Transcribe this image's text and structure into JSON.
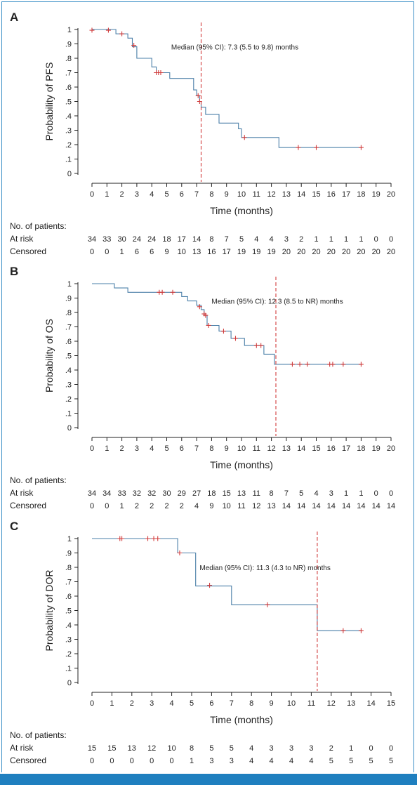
{
  "colors": {
    "curve": "#4a7fa8",
    "censor": "#d13c3c",
    "median": "#d13c3c",
    "axis": "#222222",
    "frame": "#3b8fc6",
    "bar": "#1f7fbf"
  },
  "patients_label": "No. of patients:",
  "at_risk_label": "At risk",
  "censored_label": "Censored",
  "chart_data": [
    {
      "type": "line",
      "panel_label": "A",
      "ylabel": "Probability of PFS",
      "xlabel": "Time (months)",
      "xlim": [
        0,
        20
      ],
      "ylim": [
        0,
        1
      ],
      "x_ticks": [
        "0",
        "1",
        "2",
        "3",
        "4",
        "5",
        "6",
        "7",
        "8",
        "9",
        "10",
        "11",
        "12",
        "13",
        "14",
        "15",
        "16",
        "17",
        "18",
        "19",
        "20"
      ],
      "y_ticks": [
        "0",
        ".1",
        ".2",
        ".3",
        ".4",
        ".5",
        ".6",
        ".7",
        ".8",
        ".9",
        "1"
      ],
      "step": [
        [
          0,
          1
        ],
        [
          1.6,
          1
        ],
        [
          1.6,
          0.97
        ],
        [
          2.4,
          0.97
        ],
        [
          2.4,
          0.94
        ],
        [
          2.7,
          0.94
        ],
        [
          2.7,
          0.88
        ],
        [
          3,
          0.88
        ],
        [
          3,
          0.8
        ],
        [
          4,
          0.8
        ],
        [
          4,
          0.74
        ],
        [
          4.3,
          0.74
        ],
        [
          4.3,
          0.7
        ],
        [
          5.2,
          0.7
        ],
        [
          5.2,
          0.66
        ],
        [
          6.8,
          0.66
        ],
        [
          6.8,
          0.58
        ],
        [
          7,
          0.58
        ],
        [
          7,
          0.54
        ],
        [
          7.2,
          0.54
        ],
        [
          7.2,
          0.5
        ],
        [
          7.3,
          0.5
        ],
        [
          7.3,
          0.46
        ],
        [
          7.6,
          0.46
        ],
        [
          7.6,
          0.41
        ],
        [
          8.5,
          0.41
        ],
        [
          8.5,
          0.35
        ],
        [
          9.8,
          0.35
        ],
        [
          9.8,
          0.31
        ],
        [
          10,
          0.31
        ],
        [
          10,
          0.25
        ],
        [
          12.5,
          0.25
        ],
        [
          12.5,
          0.18
        ],
        [
          18,
          0.18
        ]
      ],
      "censored_marks": [
        [
          0,
          0.995
        ],
        [
          1.1,
          0.995
        ],
        [
          2,
          0.97
        ],
        [
          2.8,
          0.89
        ],
        [
          4.3,
          0.7
        ],
        [
          4.45,
          0.7
        ],
        [
          4.6,
          0.7
        ],
        [
          7.1,
          0.54
        ],
        [
          7.2,
          0.5
        ],
        [
          10.2,
          0.25
        ],
        [
          13.8,
          0.18
        ],
        [
          15,
          0.18
        ],
        [
          18,
          0.18
        ]
      ],
      "median_x": 7.3,
      "median_text": "Median (95% CI): 7.3 (5.5 to 9.8) months",
      "median_text_pos": [
        5.3,
        0.88
      ],
      "at_risk": [
        "34",
        "33",
        "30",
        "24",
        "24",
        "18",
        "17",
        "14",
        "8",
        "7",
        "5",
        "4",
        "4",
        "3",
        "2",
        "1",
        "1",
        "1",
        "1",
        "0",
        "0"
      ],
      "censored": [
        "0",
        "0",
        "1",
        "6",
        "6",
        "9",
        "10",
        "13",
        "16",
        "17",
        "19",
        "19",
        "19",
        "20",
        "20",
        "20",
        "20",
        "20",
        "20",
        "20",
        "20"
      ]
    },
    {
      "type": "line",
      "panel_label": "B",
      "ylabel": "Probability of OS",
      "xlabel": "Time (months)",
      "xlim": [
        0,
        20
      ],
      "ylim": [
        0,
        1
      ],
      "x_ticks": [
        "0",
        "1",
        "2",
        "3",
        "4",
        "5",
        "6",
        "7",
        "8",
        "9",
        "10",
        "11",
        "12",
        "13",
        "14",
        "15",
        "16",
        "17",
        "18",
        "19",
        "20"
      ],
      "y_ticks": [
        "0",
        ".1",
        ".2",
        ".3",
        ".4",
        ".5",
        ".6",
        ".7",
        ".8",
        ".9",
        "1"
      ],
      "step": [
        [
          0,
          1
        ],
        [
          1.5,
          1
        ],
        [
          1.5,
          0.97
        ],
        [
          2.4,
          0.97
        ],
        [
          2.4,
          0.94
        ],
        [
          6,
          0.94
        ],
        [
          6,
          0.91
        ],
        [
          6.4,
          0.91
        ],
        [
          6.4,
          0.88
        ],
        [
          7,
          0.88
        ],
        [
          7,
          0.85
        ],
        [
          7.3,
          0.85
        ],
        [
          7.3,
          0.82
        ],
        [
          7.5,
          0.82
        ],
        [
          7.5,
          0.78
        ],
        [
          7.7,
          0.78
        ],
        [
          7.7,
          0.71
        ],
        [
          8.5,
          0.71
        ],
        [
          8.5,
          0.67
        ],
        [
          9.3,
          0.67
        ],
        [
          9.3,
          0.62
        ],
        [
          10.2,
          0.62
        ],
        [
          10.2,
          0.57
        ],
        [
          11.5,
          0.57
        ],
        [
          11.5,
          0.51
        ],
        [
          12.2,
          0.51
        ],
        [
          12.2,
          0.44
        ],
        [
          18,
          0.44
        ]
      ],
      "censored_marks": [
        [
          4.5,
          0.94
        ],
        [
          4.7,
          0.94
        ],
        [
          5.4,
          0.94
        ],
        [
          7.2,
          0.84
        ],
        [
          7.5,
          0.79
        ],
        [
          7.6,
          0.78
        ],
        [
          7.8,
          0.71
        ],
        [
          8.8,
          0.67
        ],
        [
          9.6,
          0.62
        ],
        [
          11,
          0.57
        ],
        [
          11.3,
          0.57
        ],
        [
          13.4,
          0.44
        ],
        [
          13.9,
          0.44
        ],
        [
          14.4,
          0.44
        ],
        [
          15.9,
          0.44
        ],
        [
          16.1,
          0.44
        ],
        [
          16.8,
          0.44
        ],
        [
          18,
          0.44
        ]
      ],
      "median_x": 12.3,
      "median_text": "Median (95% CI): 12.3 (8.5 to NR) months",
      "median_text_pos": [
        8,
        0.88
      ],
      "at_risk": [
        "34",
        "34",
        "33",
        "32",
        "32",
        "30",
        "29",
        "27",
        "18",
        "15",
        "13",
        "11",
        "8",
        "7",
        "5",
        "4",
        "3",
        "1",
        "1",
        "0",
        "0"
      ],
      "censored": [
        "0",
        "0",
        "1",
        "2",
        "2",
        "2",
        "2",
        "4",
        "9",
        "10",
        "11",
        "12",
        "13",
        "14",
        "14",
        "14",
        "14",
        "14",
        "14",
        "14",
        "14"
      ]
    },
    {
      "type": "line",
      "panel_label": "C",
      "ylabel": "Probability of DOR",
      "xlabel": "Time (months)",
      "xlim": [
        0,
        15
      ],
      "ylim": [
        0,
        1
      ],
      "x_ticks": [
        "0",
        "1",
        "2",
        "3",
        "4",
        "5",
        "6",
        "7",
        "8",
        "9",
        "10",
        "11",
        "12",
        "13",
        "14",
        "15"
      ],
      "y_ticks": [
        "0",
        ".1",
        ".2",
        ".3",
        ".4",
        ".5",
        ".6",
        ".7",
        ".8",
        ".9",
        "1"
      ],
      "step": [
        [
          0,
          1
        ],
        [
          4.3,
          1
        ],
        [
          4.3,
          0.9
        ],
        [
          5.2,
          0.9
        ],
        [
          5.2,
          0.67
        ],
        [
          7,
          0.67
        ],
        [
          7,
          0.54
        ],
        [
          11.3,
          0.54
        ],
        [
          11.3,
          0.36
        ],
        [
          13.5,
          0.36
        ]
      ],
      "censored_marks": [
        [
          1.4,
          1
        ],
        [
          1.5,
          1
        ],
        [
          2.8,
          1
        ],
        [
          3.1,
          1
        ],
        [
          3.3,
          1
        ],
        [
          4.4,
          0.9
        ],
        [
          5.9,
          0.675
        ],
        [
          8.8,
          0.54
        ],
        [
          12.6,
          0.36
        ],
        [
          13.5,
          0.36
        ]
      ],
      "median_x": 11.3,
      "median_text": "Median (95% CI): 11.3 (4.3 to NR) months",
      "median_text_pos": [
        5.4,
        0.8
      ],
      "at_risk": [
        "15",
        "15",
        "13",
        "12",
        "10",
        "8",
        "5",
        "5",
        "4",
        "3",
        "3",
        "3",
        "2",
        "1",
        "0",
        "0"
      ],
      "censored": [
        "0",
        "0",
        "0",
        "0",
        "0",
        "1",
        "3",
        "3",
        "4",
        "4",
        "4",
        "4",
        "5",
        "5",
        "5",
        "5"
      ]
    }
  ]
}
